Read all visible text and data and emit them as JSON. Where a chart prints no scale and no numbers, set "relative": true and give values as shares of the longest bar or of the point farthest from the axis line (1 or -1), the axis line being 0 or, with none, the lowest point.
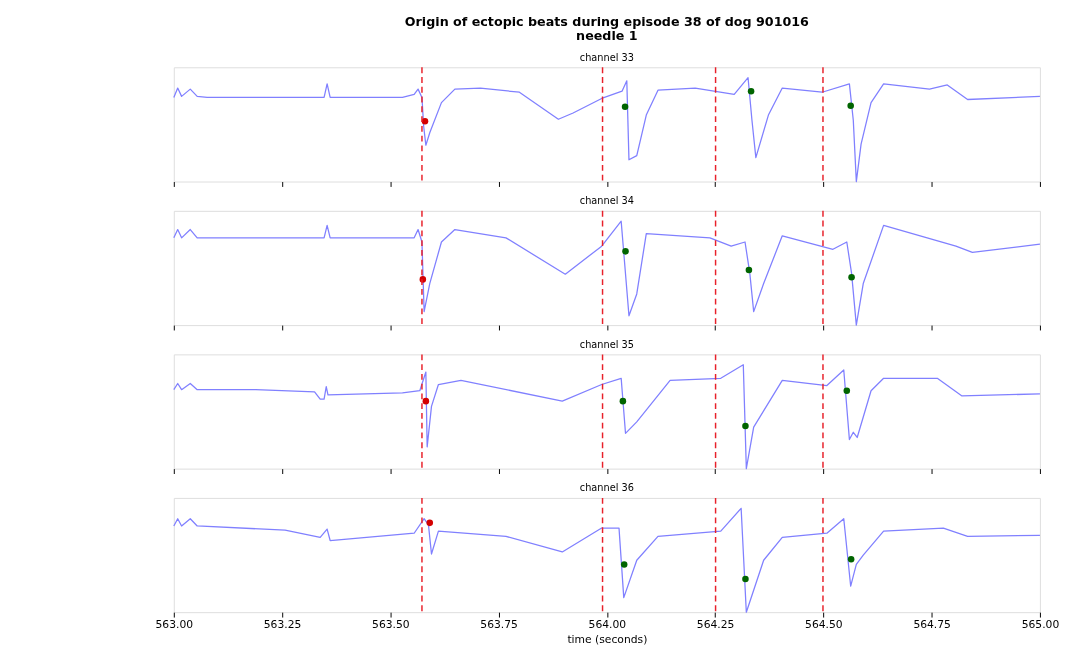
{
  "chart_data": [
    {
      "type": "line",
      "title": "channel 33",
      "annotations": [
        "Origin of ectopic beats during episode 38 of dog 901016",
        "needle 1"
      ],
      "relative": true,
      "tick_labels": false,
      "xlim": [
        563.0,
        565.0
      ],
      "xticks": [
        {
          "value": 563.0,
          "label": null
        },
        {
          "value": 563.25,
          "label": null
        },
        {
          "value": 563.5,
          "label": null
        },
        {
          "value": 563.75,
          "label": null
        },
        {
          "value": 564.0,
          "label": null
        },
        {
          "value": 564.25,
          "label": null
        },
        {
          "value": 564.5,
          "label": null
        },
        {
          "value": 564.75,
          "label": null
        },
        {
          "value": 565.0,
          "label": null
        }
      ],
      "ref_lines": [
        {
          "axis": "x",
          "value": 563.573,
          "color": "#e8202a",
          "line_style": "dashed"
        },
        {
          "axis": "x",
          "value": 563.99,
          "color": "#e8202a",
          "line_style": "dashed"
        },
        {
          "axis": "x",
          "value": 564.251,
          "color": "#e8202a",
          "line_style": "dashed"
        },
        {
          "axis": "x",
          "value": 564.499,
          "color": "#e8202a",
          "line_style": "dashed"
        }
      ],
      "series": [
        {
          "type": "line",
          "color": "#8080ff",
          "marker": "none",
          "x": [
            563.0,
            563.009,
            563.018,
            563.038,
            563.054,
            563.077,
            563.189,
            563.347,
            563.354,
            563.361,
            563.528,
            563.555,
            563.564,
            563.573,
            563.577,
            563.582,
            563.591,
            563.618,
            563.649,
            563.708,
            563.798,
            563.888,
            563.922,
            563.988,
            564.035,
            564.046,
            564.051,
            564.069,
            564.091,
            564.118,
            564.204,
            564.294,
            564.326,
            564.335,
            564.344,
            564.373,
            564.405,
            564.497,
            564.56,
            564.569,
            564.576,
            564.587,
            564.61,
            564.639,
            564.745,
            564.786,
            564.833,
            565.0
          ],
          "values": [
            0.81,
            0.9,
            0.82,
            0.89,
            0.82,
            0.81,
            0.81,
            0.81,
            0.94,
            0.81,
            0.81,
            0.84,
            0.89,
            0.81,
            0.53,
            0.35,
            0.47,
            0.76,
            0.89,
            0.9,
            0.86,
            0.6,
            0.66,
            0.8,
            0.87,
            0.97,
            0.21,
            0.25,
            0.64,
            0.88,
            0.9,
            0.84,
            1.0,
            0.59,
            0.23,
            0.64,
            0.9,
            0.86,
            0.94,
            0.59,
            0.0,
            0.36,
            0.76,
            0.94,
            0.89,
            0.93,
            0.79,
            0.82
          ]
        },
        {
          "type": "scatter",
          "color": "#d40000",
          "marker": "circle",
          "x": [
            563.58
          ],
          "values": [
            0.58
          ]
        },
        {
          "type": "scatter",
          "color": "#006400",
          "marker": "circle",
          "x": [
            564.042,
            564.333,
            564.563
          ],
          "values": [
            0.72,
            0.87,
            0.73
          ]
        }
      ]
    },
    {
      "type": "line",
      "title": "channel 34",
      "relative": true,
      "tick_labels": false,
      "xlim": [
        563.0,
        565.0
      ],
      "xticks": [
        {
          "value": 563.0,
          "label": null
        },
        {
          "value": 563.25,
          "label": null
        },
        {
          "value": 563.5,
          "label": null
        },
        {
          "value": 563.75,
          "label": null
        },
        {
          "value": 564.0,
          "label": null
        },
        {
          "value": 564.25,
          "label": null
        },
        {
          "value": 564.5,
          "label": null
        },
        {
          "value": 564.75,
          "label": null
        },
        {
          "value": 565.0,
          "label": null
        }
      ],
      "ref_lines": [
        {
          "axis": "x",
          "value": 563.573,
          "color": "#e8202a",
          "line_style": "dashed"
        },
        {
          "axis": "x",
          "value": 563.99,
          "color": "#e8202a",
          "line_style": "dashed"
        },
        {
          "axis": "x",
          "value": 564.251,
          "color": "#e8202a",
          "line_style": "dashed"
        },
        {
          "axis": "x",
          "value": 564.499,
          "color": "#e8202a",
          "line_style": "dashed"
        }
      ],
      "series": [
        {
          "type": "line",
          "color": "#8080ff",
          "marker": "none",
          "x": [
            563.0,
            563.009,
            563.018,
            563.038,
            563.054,
            563.189,
            563.347,
            563.354,
            563.361,
            563.555,
            563.564,
            563.573,
            563.578,
            563.591,
            563.618,
            563.649,
            563.767,
            563.904,
            563.988,
            564.033,
            564.051,
            564.069,
            564.091,
            564.238,
            564.287,
            564.319,
            564.33,
            564.339,
            564.362,
            564.405,
            564.522,
            564.554,
            564.565,
            564.576,
            564.592,
            564.639,
            564.806,
            564.844,
            565.0
          ],
          "values": [
            0.84,
            0.92,
            0.84,
            0.92,
            0.84,
            0.84,
            0.84,
            0.96,
            0.84,
            0.84,
            0.92,
            0.8,
            0.13,
            0.4,
            0.8,
            0.92,
            0.84,
            0.49,
            0.76,
            1.0,
            0.09,
            0.3,
            0.88,
            0.84,
            0.76,
            0.8,
            0.5,
            0.13,
            0.4,
            0.86,
            0.73,
            0.8,
            0.5,
            0.0,
            0.4,
            0.96,
            0.76,
            0.7,
            0.78
          ]
        },
        {
          "type": "scatter",
          "color": "#d40000",
          "marker": "circle",
          "x": [
            563.575
          ],
          "values": [
            0.44
          ]
        },
        {
          "type": "scatter",
          "color": "#006400",
          "marker": "circle",
          "x": [
            564.043,
            564.328,
            564.565
          ],
          "values": [
            0.71,
            0.53,
            0.46
          ]
        }
      ]
    },
    {
      "type": "line",
      "title": "channel 35",
      "relative": true,
      "tick_labels": false,
      "xlim": [
        563.0,
        565.0
      ],
      "xticks": [
        {
          "value": 563.0,
          "label": null
        },
        {
          "value": 563.25,
          "label": null
        },
        {
          "value": 563.5,
          "label": null
        },
        {
          "value": 563.75,
          "label": null
        },
        {
          "value": 564.0,
          "label": null
        },
        {
          "value": 564.25,
          "label": null
        },
        {
          "value": 564.5,
          "label": null
        },
        {
          "value": 564.75,
          "label": null
        },
        {
          "value": 565.0,
          "label": null
        }
      ],
      "ref_lines": [
        {
          "axis": "x",
          "value": 563.573,
          "color": "#e8202a",
          "line_style": "dashed"
        },
        {
          "axis": "x",
          "value": 563.99,
          "color": "#e8202a",
          "line_style": "dashed"
        },
        {
          "axis": "x",
          "value": 564.251,
          "color": "#e8202a",
          "line_style": "dashed"
        },
        {
          "axis": "x",
          "value": 564.499,
          "color": "#e8202a",
          "line_style": "dashed"
        }
      ],
      "series": [
        {
          "type": "line",
          "color": "#8080ff",
          "marker": "none",
          "x": [
            563.0,
            563.009,
            563.018,
            563.038,
            563.054,
            563.189,
            563.325,
            563.338,
            563.347,
            563.352,
            563.356,
            563.528,
            563.568,
            563.582,
            563.585,
            563.595,
            563.611,
            563.663,
            563.897,
            563.988,
            564.033,
            564.043,
            564.069,
            564.146,
            564.263,
            564.315,
            564.322,
            564.339,
            564.405,
            564.508,
            564.547,
            564.56,
            564.569,
            564.578,
            564.61,
            564.639,
            564.763,
            564.82,
            565.0
          ],
          "values": [
            0.76,
            0.82,
            0.76,
            0.82,
            0.76,
            0.76,
            0.74,
            0.67,
            0.67,
            0.79,
            0.71,
            0.73,
            0.75,
            0.93,
            0.21,
            0.6,
            0.81,
            0.85,
            0.65,
            0.81,
            0.87,
            0.34,
            0.45,
            0.85,
            0.87,
            1.0,
            0.0,
            0.4,
            0.85,
            0.8,
            0.95,
            0.28,
            0.35,
            0.3,
            0.75,
            0.87,
            0.87,
            0.7,
            0.72
          ]
        },
        {
          "type": "scatter",
          "color": "#d40000",
          "marker": "circle",
          "x": [
            563.582
          ],
          "values": [
            0.65
          ]
        },
        {
          "type": "scatter",
          "color": "#006400",
          "marker": "circle",
          "x": [
            564.037,
            564.32,
            564.554
          ],
          "values": [
            0.65,
            0.41,
            0.75
          ]
        }
      ]
    },
    {
      "type": "line",
      "title": "channel 36",
      "xlabel": "time (seconds)",
      "relative": true,
      "tick_labels": "x",
      "xlim": [
        563.0,
        565.0
      ],
      "xticks": [
        {
          "value": 563.0,
          "label": "563.00"
        },
        {
          "value": 563.25,
          "label": "563.25"
        },
        {
          "value": 563.5,
          "label": "563.50"
        },
        {
          "value": 563.75,
          "label": "563.75"
        },
        {
          "value": 564.0,
          "label": "564.00"
        },
        {
          "value": 564.25,
          "label": "564.25"
        },
        {
          "value": 564.5,
          "label": "564.50"
        },
        {
          "value": 564.75,
          "label": "564.75"
        },
        {
          "value": 565.0,
          "label": "565.00"
        }
      ],
      "ref_lines": [
        {
          "axis": "x",
          "value": 563.573,
          "color": "#e8202a",
          "line_style": "dashed"
        },
        {
          "axis": "x",
          "value": 563.99,
          "color": "#e8202a",
          "line_style": "dashed"
        },
        {
          "axis": "x",
          "value": 564.251,
          "color": "#e8202a",
          "line_style": "dashed"
        },
        {
          "axis": "x",
          "value": 564.499,
          "color": "#e8202a",
          "line_style": "dashed"
        }
      ],
      "series": [
        {
          "type": "line",
          "color": "#8080ff",
          "marker": "none",
          "x": [
            563.0,
            563.009,
            563.018,
            563.038,
            563.054,
            563.257,
            563.338,
            563.354,
            563.361,
            563.555,
            563.578,
            563.588,
            563.595,
            563.611,
            563.767,
            563.897,
            563.988,
            564.028,
            564.039,
            564.069,
            564.118,
            564.263,
            564.31,
            564.322,
            564.362,
            564.405,
            564.508,
            564.547,
            564.563,
            564.576,
            564.592,
            564.639,
            564.777,
            564.833,
            565.0
          ],
          "values": [
            0.83,
            0.9,
            0.83,
            0.9,
            0.83,
            0.79,
            0.72,
            0.8,
            0.69,
            0.76,
            0.9,
            0.84,
            0.56,
            0.78,
            0.73,
            0.58,
            0.81,
            0.81,
            0.14,
            0.5,
            0.73,
            0.78,
            1.0,
            0.0,
            0.5,
            0.72,
            0.76,
            0.9,
            0.25,
            0.46,
            0.55,
            0.78,
            0.81,
            0.73,
            0.74
          ]
        },
        {
          "type": "scatter",
          "color": "#d40000",
          "marker": "circle",
          "x": [
            563.591
          ],
          "values": [
            0.86
          ]
        },
        {
          "type": "scatter",
          "color": "#006400",
          "marker": "circle",
          "x": [
            564.04,
            564.32,
            564.564
          ],
          "values": [
            0.46,
            0.32,
            0.51
          ]
        }
      ]
    }
  ]
}
